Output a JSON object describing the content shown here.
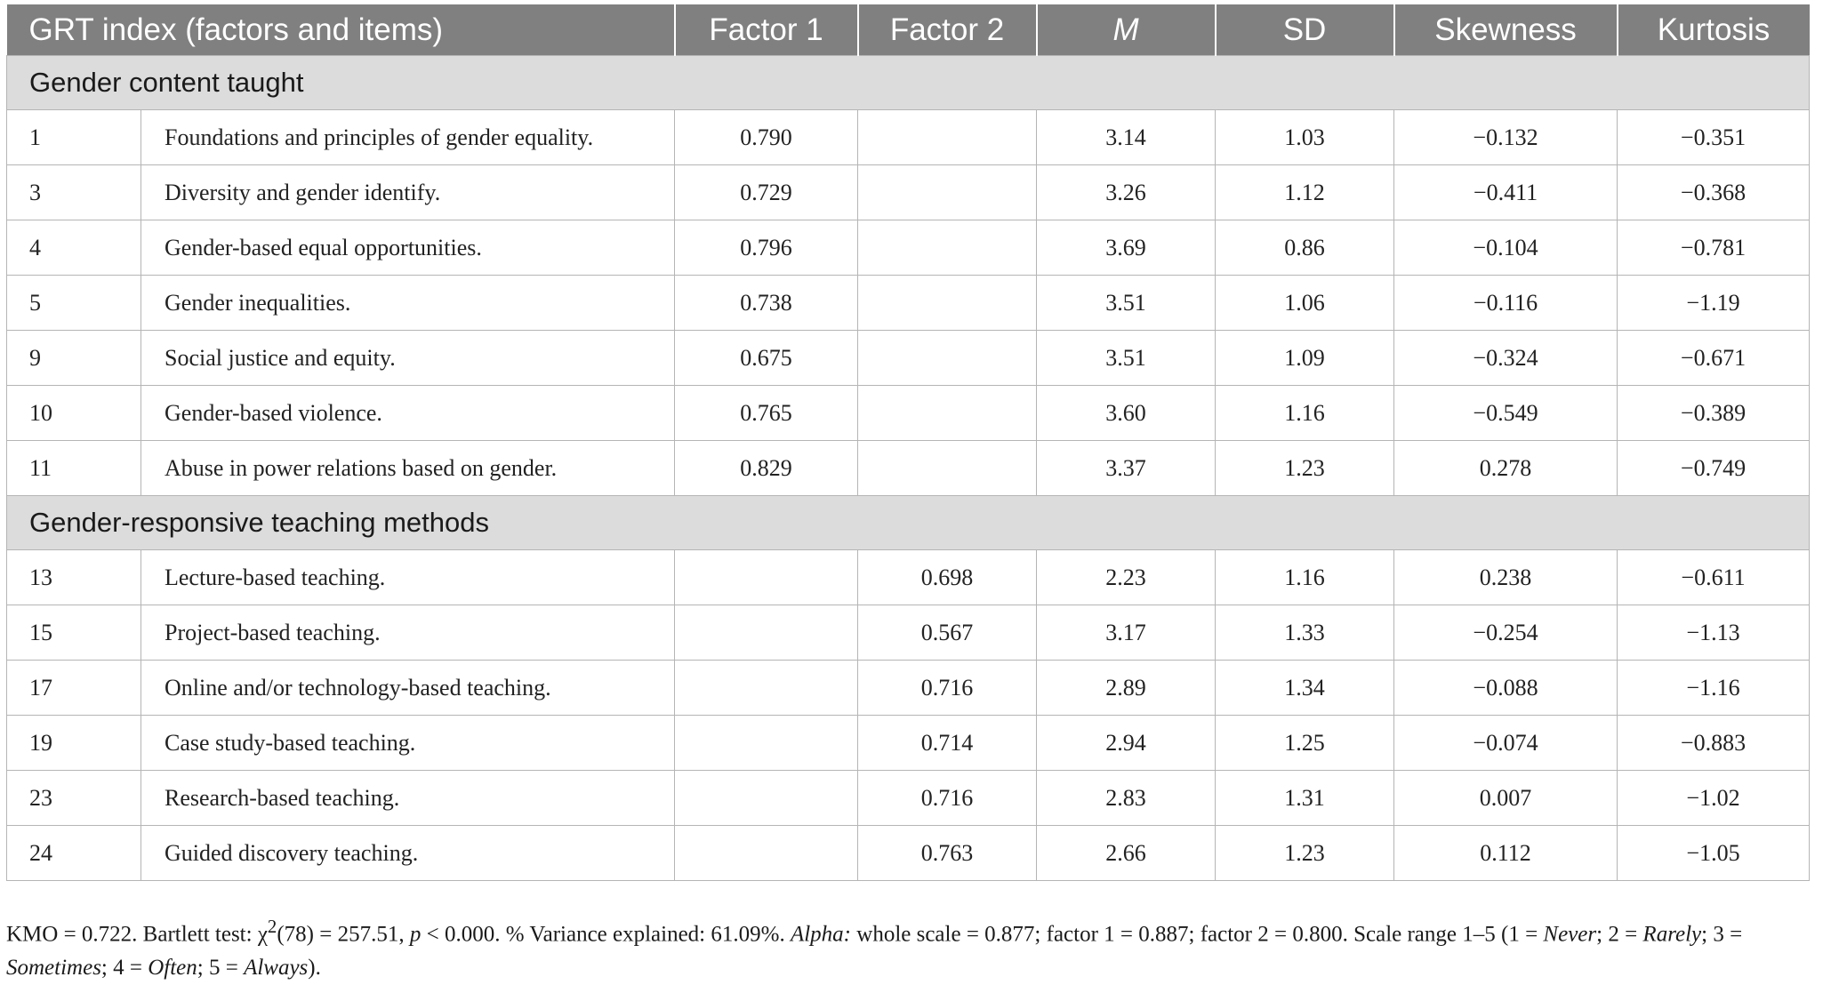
{
  "table": {
    "headers": {
      "index": "GRT index (factors and items)",
      "factor1": "Factor 1",
      "factor2": "Factor 2",
      "m": "M",
      "sd": "SD",
      "skewness": "Skewness",
      "kurtosis": "Kurtosis"
    },
    "sections": [
      {
        "title": "Gender content taught",
        "rows": [
          {
            "num": "1",
            "item": "Foundations and principles of gender equality.",
            "factor1": "0.790",
            "factor2": "",
            "m": "3.14",
            "sd": "1.03",
            "skewness": "−0.132",
            "kurtosis": "−0.351"
          },
          {
            "num": "3",
            "item": "Diversity and gender identify.",
            "factor1": "0.729",
            "factor2": "",
            "m": "3.26",
            "sd": "1.12",
            "skewness": "−0.411",
            "kurtosis": "−0.368"
          },
          {
            "num": "4",
            "item": "Gender-based equal opportunities.",
            "factor1": "0.796",
            "factor2": "",
            "m": "3.69",
            "sd": "0.86",
            "skewness": "−0.104",
            "kurtosis": "−0.781"
          },
          {
            "num": "5",
            "item": "Gender inequalities.",
            "factor1": "0.738",
            "factor2": "",
            "m": "3.51",
            "sd": "1.06",
            "skewness": "−0.116",
            "kurtosis": "−1.19"
          },
          {
            "num": "9",
            "item": "Social justice and equity.",
            "factor1": "0.675",
            "factor2": "",
            "m": "3.51",
            "sd": "1.09",
            "skewness": "−0.324",
            "kurtosis": "−0.671"
          },
          {
            "num": "10",
            "item": "Gender-based violence.",
            "factor1": "0.765",
            "factor2": "",
            "m": "3.60",
            "sd": "1.16",
            "skewness": "−0.549",
            "kurtosis": "−0.389"
          },
          {
            "num": "11",
            "item": "Abuse in power relations based on gender.",
            "factor1": "0.829",
            "factor2": "",
            "m": "3.37",
            "sd": "1.23",
            "skewness": "0.278",
            "kurtosis": "−0.749"
          }
        ]
      },
      {
        "title": "Gender-responsive teaching methods",
        "rows": [
          {
            "num": "13",
            "item": "Lecture-based teaching.",
            "factor1": "",
            "factor2": "0.698",
            "m": "2.23",
            "sd": "1.16",
            "skewness": "0.238",
            "kurtosis": "−0.611"
          },
          {
            "num": "15",
            "item": "Project-based teaching.",
            "factor1": "",
            "factor2": "0.567",
            "m": "3.17",
            "sd": "1.33",
            "skewness": "−0.254",
            "kurtosis": "−1.13"
          },
          {
            "num": "17",
            "item": "Online and/or technology-based teaching.",
            "factor1": "",
            "factor2": "0.716",
            "m": "2.89",
            "sd": "1.34",
            "skewness": "−0.088",
            "kurtosis": "−1.16"
          },
          {
            "num": "19",
            "item": "Case study-based teaching.",
            "factor1": "",
            "factor2": "0.714",
            "m": "2.94",
            "sd": "1.25",
            "skewness": "−0.074",
            "kurtosis": "−0.883"
          },
          {
            "num": "23",
            "item": "Research-based teaching.",
            "factor1": "",
            "factor2": "0.716",
            "m": "2.83",
            "sd": "1.31",
            "skewness": "0.007",
            "kurtosis": "−1.02"
          },
          {
            "num": "24",
            "item": "Guided discovery teaching.",
            "factor1": "",
            "factor2": "0.763",
            "m": "2.66",
            "sd": "1.23",
            "skewness": "0.112",
            "kurtosis": "−1.05"
          }
        ]
      }
    ]
  },
  "footnote": {
    "kmo": "KMO = 0.722. Bartlett test: χ",
    "chi_sup": "2",
    "bartlett_rest": "(78) = 257.51, ",
    "p_label": "p",
    "p_rest": " < 0.000. % Variance explained: 61.09%. ",
    "alpha_label": "Alpha:",
    "alpha_rest": " whole scale = 0.877; factor 1 = 0.887; factor 2 = 0.800. Scale range 1–5 (1 = ",
    "never": "Never",
    "sep2": "; 2 = ",
    "rarely": "Rarely",
    "sep3": "; 3 = ",
    "sometimes": "Sometimes",
    "sep4": "; 4 = ",
    "often": "Often",
    "sep5": "; 5 = ",
    "always": "Always",
    "end": ")."
  }
}
